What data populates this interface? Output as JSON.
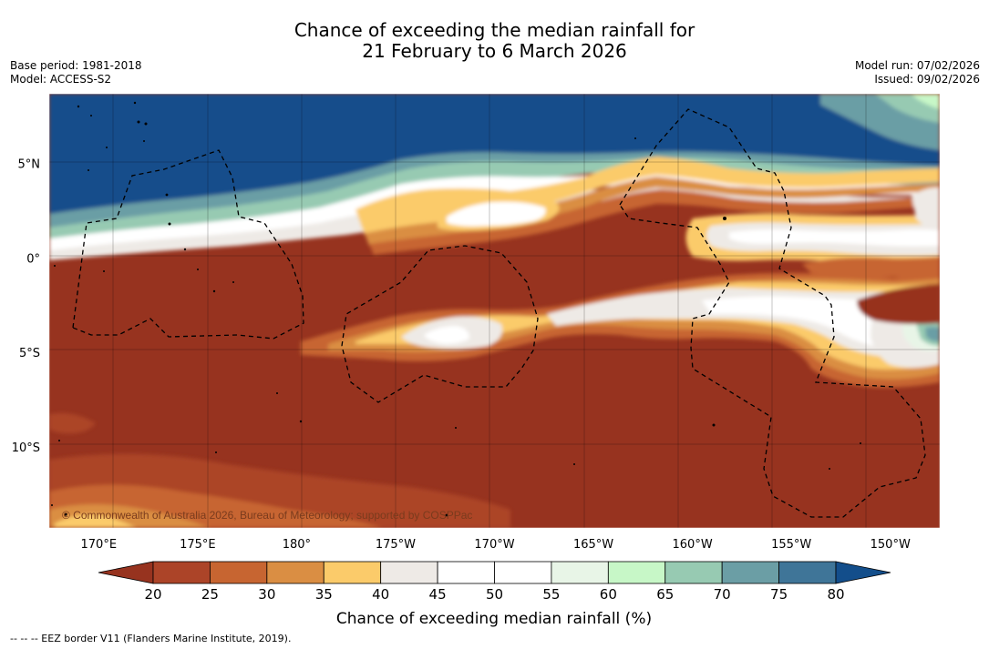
{
  "title": {
    "line1": "Chance of exceeding the median rainfall for",
    "line2": "21 February to 6 March 2026"
  },
  "info_left": {
    "base_period": "Base period: 1981-2018",
    "model": "Model: ACCESS-S2"
  },
  "info_right": {
    "model_run": "Model run: 07/02/2026",
    "issued": "Issued: 09/02/2026"
  },
  "map": {
    "lon_range": [
      167.5,
      212.5
    ],
    "lat_range": [
      -14.3,
      8.7
    ],
    "lat_labels": [
      {
        "lat": 5,
        "label": "5°N"
      },
      {
        "lat": 0,
        "label": "0°"
      },
      {
        "lat": -5,
        "label": "5°S"
      },
      {
        "lat": -10,
        "label": "10°S"
      }
    ],
    "lon_labels": [
      {
        "lon": 170,
        "label": "170°E"
      },
      {
        "lon": 175,
        "label": "175°E"
      },
      {
        "lon": 180,
        "label": "180°"
      },
      {
        "lon": 185,
        "label": "175°W"
      },
      {
        "lon": 190,
        "label": "170°W"
      },
      {
        "lon": 195,
        "label": "165°W"
      },
      {
        "lon": 200,
        "label": "160°W"
      },
      {
        "lon": 205,
        "label": "155°W"
      },
      {
        "lon": 210,
        "label": "150°W"
      }
    ],
    "copyright": "© Commonwealth of Australia 2026, Bureau of Meteorology; supported by COSPPac",
    "regions": [
      {
        "name": "northern-blue-wet",
        "color": "#134e8b",
        "description_lat": "3 to 8.7"
      },
      {
        "name": "equatorial-dry-band",
        "color": "#97331f",
        "description_lat": "-14 to 2"
      }
    ]
  },
  "colorbar": {
    "ticks": [
      "20",
      "25",
      "30",
      "35",
      "40",
      "45",
      "50",
      "55",
      "60",
      "65",
      "70",
      "75",
      "80"
    ],
    "colors": [
      "#97331f",
      "#ac4428",
      "#c76531",
      "#da8e43",
      "#fbcb6a",
      "#eeeae6",
      "#ffffff",
      "#ffffff",
      "#e8f5e7",
      "#c7f7c7",
      "#97cab2",
      "#6b9ea5",
      "#3f7598",
      "#134e8b"
    ],
    "label": "Chance of exceeding median rainfall (%)"
  },
  "footnote": "--  --  -- EEZ border V11 (Flanders Marine Institute, 2019)."
}
